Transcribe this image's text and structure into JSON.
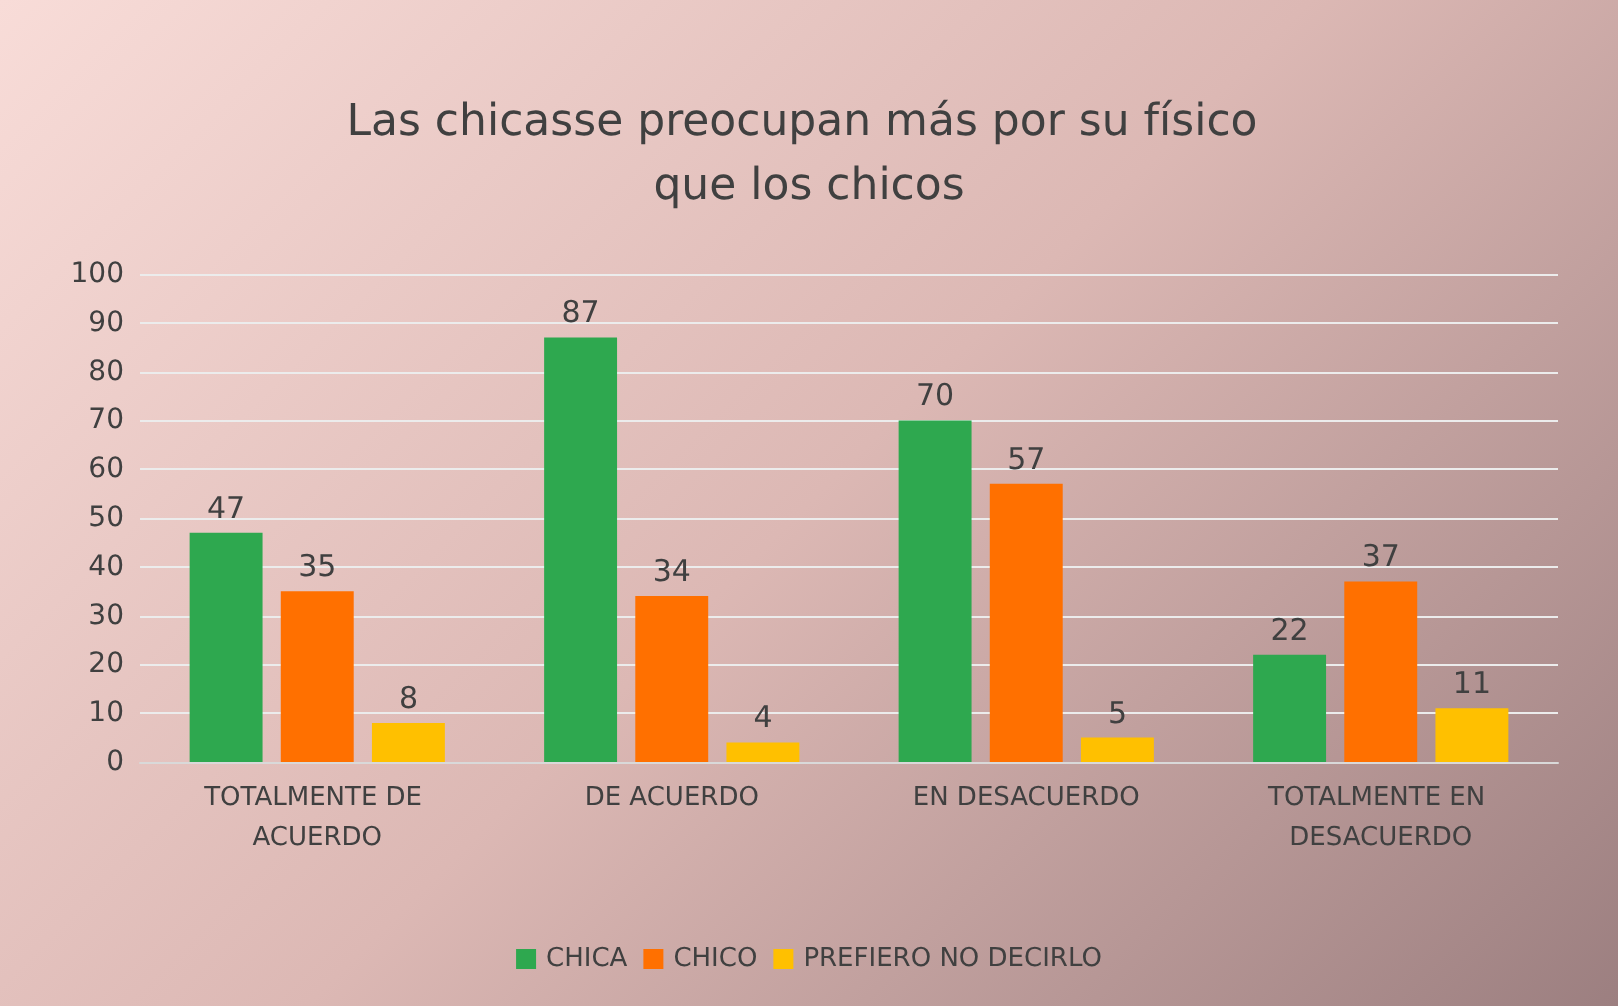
{
  "chart_data": {
    "type": "bar",
    "title": "Las chicasse preocupan más por su físico que los chicos",
    "categories": [
      "TOTALMENTE DE ACUERDO",
      "DE ACUERDO",
      "EN DESACUERDO",
      "TOTALMENTE EN DESACUERDO"
    ],
    "series": [
      {
        "name": "CHICA",
        "color": "#2ea84f",
        "values": [
          47,
          87,
          70,
          22
        ]
      },
      {
        "name": "CHICO",
        "color": "#ff7000",
        "values": [
          35,
          34,
          57,
          37
        ]
      },
      {
        "name": "PREFIERO NO DECIRLO",
        "color": "#ffc000",
        "values": [
          8,
          4,
          5,
          11
        ]
      }
    ],
    "ylim": [
      0,
      100
    ],
    "yticks": [
      0,
      10,
      20,
      30,
      40,
      50,
      60,
      70,
      80,
      90,
      100
    ],
    "grid": "y",
    "legend": "bottom",
    "data_labels": true
  }
}
